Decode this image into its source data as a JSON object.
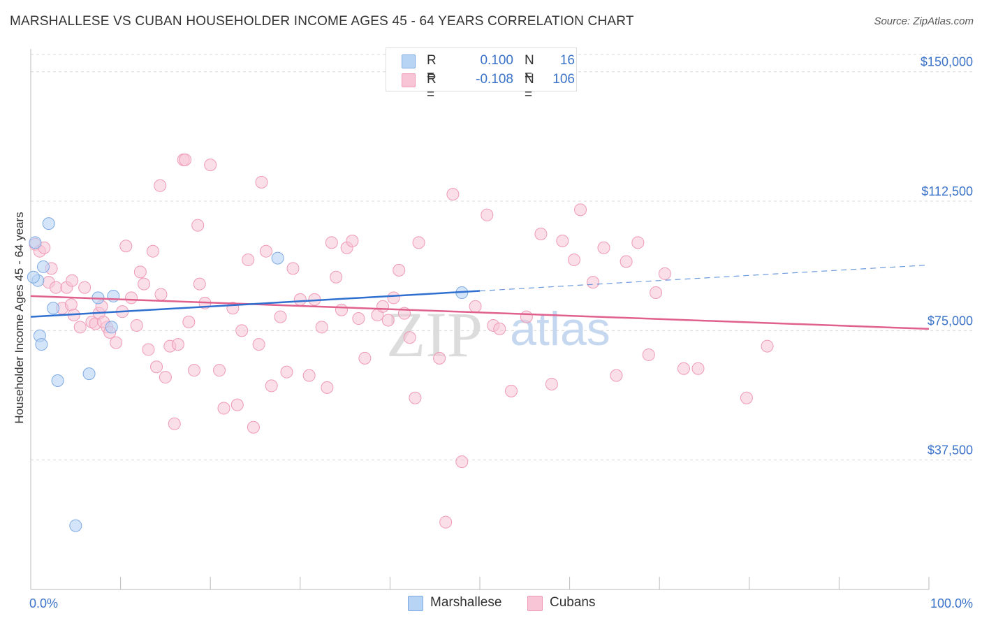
{
  "title": "MARSHALLESE VS CUBAN HOUSEHOLDER INCOME AGES 45 - 64 YEARS CORRELATION CHART",
  "source": "Source: ZipAtlas.com",
  "watermark": {
    "zip": "ZIP",
    "atlas": "atlas"
  },
  "legend": {
    "rows": [
      {
        "r_label": "R =",
        "r_value": "0.100",
        "n_label": "N =",
        "n_value": "16"
      },
      {
        "r_label": "R =",
        "r_value": "-0.108",
        "n_label": "N =",
        "n_value": "106"
      }
    ]
  },
  "bottom_legend": {
    "marshallese": "Marshallese",
    "cubans": "Cubans"
  },
  "colors": {
    "marshallese_fill": "#b8d4f5",
    "marshallese_stroke": "#7eaae3",
    "marshallese_line": "#2e6fcf",
    "cubans_fill": "#f8c5d6",
    "cubans_stroke": "#ef9ab5",
    "cubans_line": "#e0608e",
    "axis_text": "#3b73c9",
    "grid": "#d8d8d8"
  },
  "chart_data": {
    "type": "scatter",
    "title": "MARSHALLESE VS CUBAN HOUSEHOLDER INCOME AGES 45 - 64 YEARS CORRELATION CHART",
    "xlabel": "",
    "ylabel": "Householder Income Ages 45 - 64 years",
    "xlim": [
      0,
      100
    ],
    "ylim": [
      0,
      155000
    ],
    "x_tick_labels": [
      {
        "value": 0,
        "label": "0.0%"
      },
      {
        "value": 100,
        "label": "100.0%"
      }
    ],
    "y_tick_labels": [
      {
        "value": 37500,
        "label": "$37,500"
      },
      {
        "value": 75000,
        "label": "$75,000"
      },
      {
        "value": 112500,
        "label": "$112,500"
      },
      {
        "value": 150000,
        "label": "$150,000"
      }
    ],
    "series": [
      {
        "name": "Marshallese",
        "trend": {
          "x0": 0,
          "y0": 79000,
          "x1": 50,
          "y1": 86500,
          "dashed_to_x": 100,
          "dashed_to_y": 94000
        },
        "points": [
          [
            0.5,
            100500
          ],
          [
            0.8,
            89500
          ],
          [
            1.0,
            73500
          ],
          [
            1.2,
            71000
          ],
          [
            1.4,
            93500
          ],
          [
            2.0,
            106000
          ],
          [
            2.5,
            81500
          ],
          [
            3.0,
            60500
          ],
          [
            5.0,
            18500
          ],
          [
            6.5,
            62500
          ],
          [
            7.5,
            84500
          ],
          [
            9.0,
            76000
          ],
          [
            9.2,
            85000
          ],
          [
            27.5,
            96000
          ],
          [
            48.0,
            86000
          ],
          [
            0.3,
            90500
          ]
        ]
      },
      {
        "name": "Cubans",
        "trend": {
          "x0": 0,
          "y0": 85000,
          "x1": 100,
          "y1": 75500
        },
        "points": [
          [
            0.5,
            100000
          ],
          [
            1.0,
            98000
          ],
          [
            1.5,
            99000
          ],
          [
            2.0,
            89000
          ],
          [
            2.3,
            93000
          ],
          [
            2.8,
            87500
          ],
          [
            3.5,
            81500
          ],
          [
            4.0,
            87500
          ],
          [
            4.5,
            82500
          ],
          [
            4.8,
            79500
          ],
          [
            5.5,
            76000
          ],
          [
            6.0,
            87500
          ],
          [
            6.8,
            77500
          ],
          [
            7.2,
            77000
          ],
          [
            7.6,
            80000
          ],
          [
            7.9,
            82000
          ],
          [
            8.5,
            76000
          ],
          [
            8.8,
            74500
          ],
          [
            9.5,
            71500
          ],
          [
            10.2,
            80500
          ],
          [
            10.6,
            99500
          ],
          [
            11.2,
            84500
          ],
          [
            11.8,
            76500
          ],
          [
            12.2,
            92000
          ],
          [
            12.6,
            88500
          ],
          [
            13.1,
            69500
          ],
          [
            13.6,
            98000
          ],
          [
            14.0,
            64500
          ],
          [
            14.5,
            85500
          ],
          [
            15.0,
            61500
          ],
          [
            15.5,
            70500
          ],
          [
            16.0,
            48000
          ],
          [
            16.4,
            71000
          ],
          [
            17.0,
            124500
          ],
          [
            17.6,
            77500
          ],
          [
            18.2,
            63500
          ],
          [
            18.8,
            88500
          ],
          [
            19.4,
            83000
          ],
          [
            20.0,
            123000
          ],
          [
            21.0,
            63500
          ],
          [
            21.5,
            52500
          ],
          [
            22.5,
            81500
          ],
          [
            23.0,
            53500
          ],
          [
            23.5,
            75000
          ],
          [
            24.2,
            95500
          ],
          [
            24.8,
            47000
          ],
          [
            25.4,
            71000
          ],
          [
            26.2,
            98000
          ],
          [
            26.8,
            59000
          ],
          [
            27.8,
            79000
          ],
          [
            28.5,
            63000
          ],
          [
            29.2,
            93000
          ],
          [
            30.0,
            84000
          ],
          [
            31.0,
            62000
          ],
          [
            31.6,
            84000
          ],
          [
            32.4,
            76000
          ],
          [
            33.0,
            58500
          ],
          [
            33.5,
            100500
          ],
          [
            34.0,
            90500
          ],
          [
            34.6,
            81000
          ],
          [
            35.2,
            99000
          ],
          [
            35.8,
            101000
          ],
          [
            36.5,
            78500
          ],
          [
            37.2,
            67000
          ],
          [
            38.6,
            79500
          ],
          [
            39.2,
            82000
          ],
          [
            39.8,
            78000
          ],
          [
            40.4,
            84500
          ],
          [
            41.0,
            92500
          ],
          [
            41.6,
            80000
          ],
          [
            42.2,
            73000
          ],
          [
            42.8,
            55500
          ],
          [
            43.2,
            100500
          ],
          [
            45.5,
            67000
          ],
          [
            46.2,
            19500
          ],
          [
            47.0,
            114500
          ],
          [
            48.0,
            37000
          ],
          [
            49.5,
            82000
          ],
          [
            50.8,
            108500
          ],
          [
            51.5,
            76500
          ],
          [
            52.2,
            75500
          ],
          [
            53.5,
            57500
          ],
          [
            55.2,
            79000
          ],
          [
            56.8,
            103000
          ],
          [
            58.0,
            59500
          ],
          [
            59.2,
            101000
          ],
          [
            60.5,
            95500
          ],
          [
            61.2,
            110000
          ],
          [
            62.6,
            89000
          ],
          [
            63.8,
            99000
          ],
          [
            65.2,
            62000
          ],
          [
            66.3,
            95000
          ],
          [
            67.6,
            100500
          ],
          [
            68.8,
            68000
          ],
          [
            69.6,
            86000
          ],
          [
            70.6,
            91500
          ],
          [
            72.7,
            64000
          ],
          [
            74.3,
            64000
          ],
          [
            79.7,
            55500
          ],
          [
            82.0,
            70500
          ],
          [
            17.2,
            124500
          ],
          [
            14.4,
            117000
          ],
          [
            4.6,
            89500
          ],
          [
            18.6,
            105500
          ],
          [
            25.7,
            118000
          ],
          [
            8.1,
            77500
          ]
        ]
      }
    ]
  }
}
